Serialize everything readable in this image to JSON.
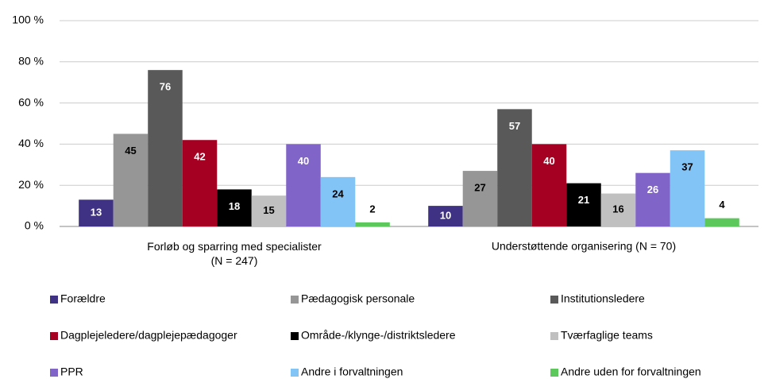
{
  "chart_data": {
    "type": "bar",
    "categories": [
      "Forløb og sparring med specialister\n(N = 247)",
      "Understøttende organisering (N = 70)"
    ],
    "series": [
      {
        "name": "Forældre",
        "color": "#3f3183",
        "values": [
          13,
          10
        ]
      },
      {
        "name": "Pædagogisk personale",
        "color": "#969696",
        "values": [
          45,
          27
        ]
      },
      {
        "name": "Institutionsledere",
        "color": "#595959",
        "values": [
          76,
          57
        ]
      },
      {
        "name": "Dagplejeledere/dagplejepædagoger",
        "color": "#a50021",
        "values": [
          42,
          40
        ]
      },
      {
        "name": "Område-/klynge-/distriktsledere",
        "color": "#000000",
        "values": [
          18,
          21
        ]
      },
      {
        "name": "Tværfaglige teams",
        "color": "#c0c0c0",
        "values": [
          15,
          16
        ]
      },
      {
        "name": "PPR",
        "color": "#8064c8",
        "values": [
          40,
          26
        ]
      },
      {
        "name": "Andre i forvaltningen",
        "color": "#82c4f5",
        "values": [
          24,
          37
        ]
      },
      {
        "name": "Andre uden for forvaltningen",
        "color": "#5cc85c",
        "values": [
          2,
          4
        ]
      }
    ],
    "ylim": [
      0,
      100
    ],
    "yticks": [
      {
        "value": 0,
        "label": "0 %"
      },
      {
        "value": 20,
        "label": "20 %"
      },
      {
        "value": 40,
        "label": "40 %"
      },
      {
        "value": 60,
        "label": "60 %"
      },
      {
        "value": 80,
        "label": "80 %"
      },
      {
        "value": 100,
        "label": "100 %"
      }
    ],
    "grid": true,
    "legend": "bottom"
  }
}
